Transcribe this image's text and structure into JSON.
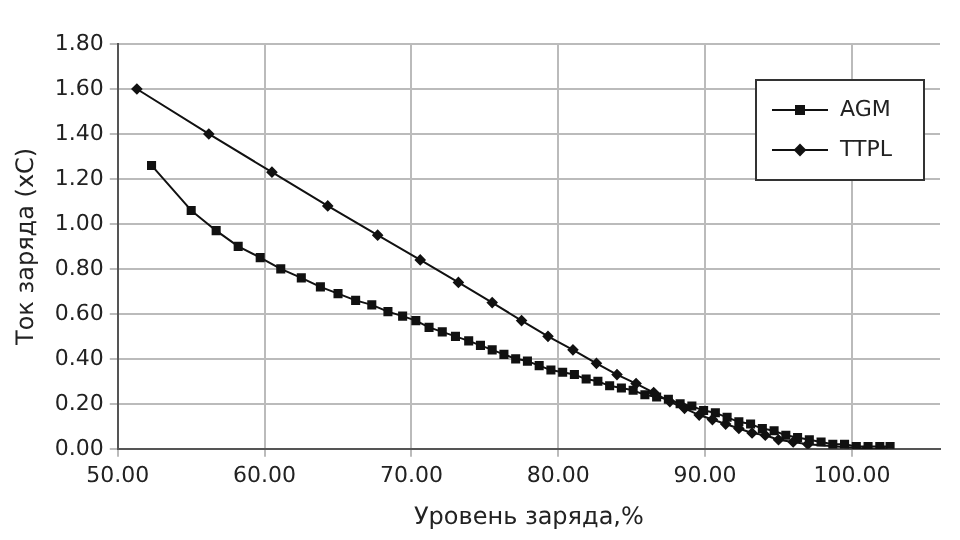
{
  "chart_data": {
    "type": "line",
    "xlabel": "Уровень заряда,%",
    "ylabel": "Ток заряда (xC)",
    "xlim": [
      50,
      106
    ],
    "ylim": [
      0,
      1.8
    ],
    "xticks": [
      {
        "value": 50,
        "label": "50.00"
      },
      {
        "value": 60,
        "label": "60.00"
      },
      {
        "value": 70,
        "label": "70.00"
      },
      {
        "value": 80,
        "label": "80.00"
      },
      {
        "value": 90,
        "label": "90.00"
      },
      {
        "value": 100,
        "label": "100.00"
      }
    ],
    "yticks": [
      {
        "value": 0,
        "label": "0.00"
      },
      {
        "value": 0.2,
        "label": "0.20"
      },
      {
        "value": 0.4,
        "label": "0.40"
      },
      {
        "value": 0.6,
        "label": "0.60"
      },
      {
        "value": 0.8,
        "label": "0.80"
      },
      {
        "value": 1,
        "label": "1.00"
      },
      {
        "value": 1.2,
        "label": "1.20"
      },
      {
        "value": 1.4,
        "label": "1.40"
      },
      {
        "value": 1.6,
        "label": "1.60"
      },
      {
        "value": 1.8,
        "label": "1.80"
      }
    ],
    "grid": true,
    "legend": "top right",
    "series": [
      {
        "name": "AGM",
        "color": "#111111",
        "marker": "square",
        "x": [
          52.3,
          55,
          56.7,
          58.2,
          59.7,
          61.1,
          62.5,
          63.8,
          65,
          66.2,
          67.3,
          68.4,
          69.4,
          70.3,
          71.2,
          72.1,
          73,
          73.9,
          74.7,
          75.5,
          76.3,
          77.1,
          77.9,
          78.7,
          79.5,
          80.3,
          81.1,
          81.9,
          82.7,
          83.5,
          84.3,
          85.1,
          85.9,
          86.7,
          87.5,
          88.3,
          89.1,
          89.9,
          90.7,
          91.5,
          92.3,
          93.1,
          93.9,
          94.7,
          95.5,
          96.3,
          97.1,
          97.9,
          98.7,
          99.5,
          100.3,
          101.1,
          101.9,
          102.6
        ],
        "values": [
          1.26,
          1.06,
          0.97,
          0.9,
          0.85,
          0.8,
          0.76,
          0.72,
          0.69,
          0.66,
          0.64,
          0.61,
          0.59,
          0.57,
          0.54,
          0.52,
          0.5,
          0.48,
          0.46,
          0.44,
          0.42,
          0.4,
          0.39,
          0.37,
          0.35,
          0.34,
          0.33,
          0.31,
          0.3,
          0.28,
          0.27,
          0.26,
          0.24,
          0.23,
          0.22,
          0.2,
          0.19,
          0.17,
          0.16,
          0.14,
          0.12,
          0.11,
          0.09,
          0.08,
          0.06,
          0.05,
          0.04,
          0.03,
          0.02,
          0.02,
          0.01,
          0.01,
          0.01,
          0.01
        ]
      },
      {
        "name": "TTPL",
        "color": "#111111",
        "marker": "diamond",
        "x": [
          51.3,
          56.2,
          60.5,
          64.3,
          67.7,
          70.6,
          73.2,
          75.5,
          77.5,
          79.3,
          81,
          82.6,
          84,
          85.3,
          86.5,
          87.6,
          88.6,
          89.6,
          90.5,
          91.4,
          92.3,
          93.2,
          94.1,
          95,
          96,
          97,
          98,
          99,
          100,
          101,
          102
        ],
        "values": [
          1.6,
          1.4,
          1.23,
          1.08,
          0.95,
          0.84,
          0.74,
          0.65,
          0.57,
          0.5,
          0.44,
          0.38,
          0.33,
          0.29,
          0.25,
          0.21,
          0.18,
          0.15,
          0.13,
          0.11,
          0.09,
          0.07,
          0.06,
          0.04,
          0.03,
          0.02,
          null,
          null,
          null,
          0,
          0
        ]
      }
    ]
  }
}
